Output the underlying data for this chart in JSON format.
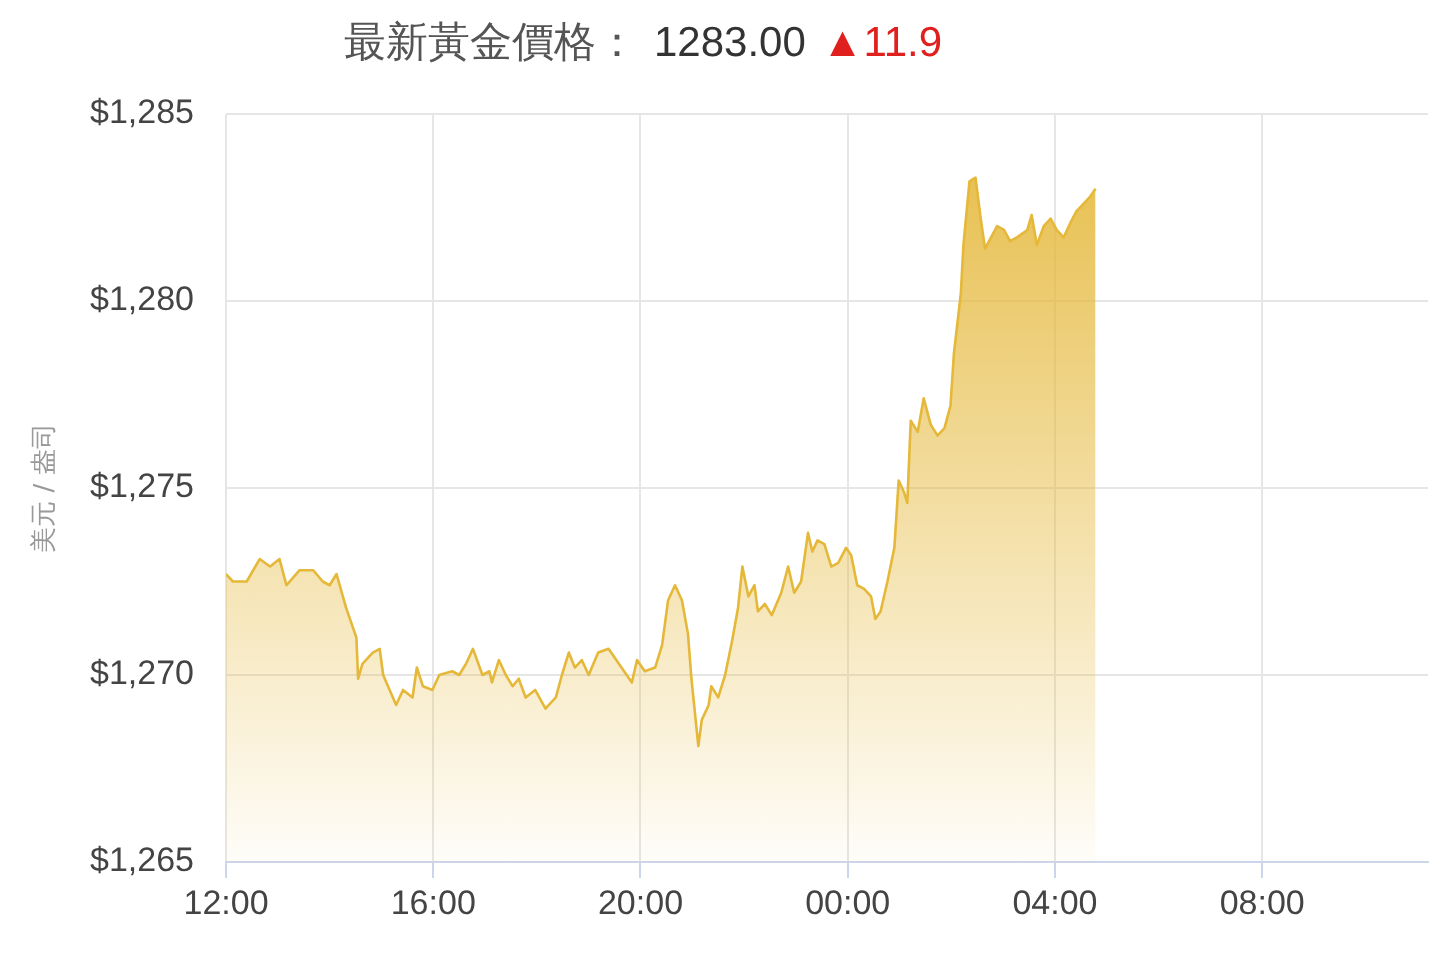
{
  "chart_data": {
    "type": "area",
    "title": "最新黃金價格：",
    "annotations": [
      "1283.00",
      "▲11.9"
    ],
    "ylabel": "美元 / 盎司",
    "color": "#e5b83a",
    "marker": "none",
    "grid": true,
    "xlim": [
      "2000-01-01T12:00",
      "2000-01-02T11:12"
    ],
    "xticks": [
      {
        "value": "2000-01-01T12:00",
        "label": "12:00"
      },
      {
        "value": "2000-01-01T16:00",
        "label": "16:00"
      },
      {
        "value": "2000-01-01T20:00",
        "label": "20:00"
      },
      {
        "value": "2000-01-02T00:00",
        "label": "00:00"
      },
      {
        "value": "2000-01-02T04:00",
        "label": "04:00"
      },
      {
        "value": "2000-01-02T08:00",
        "label": "08:00"
      }
    ],
    "ylim": [
      1265,
      1285
    ],
    "yticks": [
      {
        "value": 1265,
        "label": "$1,265"
      },
      {
        "value": 1270,
        "label": "$1,270"
      },
      {
        "value": 1275,
        "label": "$1,275"
      },
      {
        "value": 1280,
        "label": "$1,280"
      },
      {
        "value": 1285,
        "label": "$1,285"
      }
    ],
    "x": [
      "2000-01-01T12:00",
      "2000-01-01T12:08",
      "2000-01-01T12:24",
      "2000-01-01T12:39",
      "2000-01-01T12:51",
      "2000-01-01T13:02",
      "2000-01-01T13:10",
      "2000-01-01T13:25",
      "2000-01-01T13:41",
      "2000-01-01T13:52",
      "2000-01-01T14:00",
      "2000-01-01T14:08",
      "2000-01-01T14:19",
      "2000-01-01T14:31",
      "2000-01-01T14:33",
      "2000-01-01T14:38",
      "2000-01-01T14:50",
      "2000-01-01T14:58",
      "2000-01-01T15:02",
      "2000-01-01T15:17",
      "2000-01-01T15:25",
      "2000-01-01T15:36",
      "2000-01-01T15:41",
      "2000-01-01T15:48",
      "2000-01-01T15:59",
      "2000-01-01T16:07",
      "2000-01-01T16:22",
      "2000-01-01T16:30",
      "2000-01-01T16:38",
      "2000-01-01T16:46",
      "2000-01-01T16:57",
      "2000-01-01T17:05",
      "2000-01-01T17:08",
      "2000-01-01T17:16",
      "2000-01-01T17:24",
      "2000-01-01T17:32",
      "2000-01-01T17:39",
      "2000-01-01T17:47",
      "2000-01-01T17:58",
      "2000-01-01T18:10",
      "2000-01-01T18:22",
      "2000-01-01T18:29",
      "2000-01-01T18:37",
      "2000-01-01T18:44",
      "2000-01-01T18:52",
      "2000-01-01T19:00",
      "2000-01-01T19:11",
      "2000-01-01T19:23",
      "2000-01-01T19:35",
      "2000-01-01T19:44",
      "2000-01-01T19:50",
      "2000-01-01T19:56",
      "2000-01-01T20:05",
      "2000-01-01T20:17",
      "2000-01-01T20:25",
      "2000-01-01T20:32",
      "2000-01-01T20:40",
      "2000-01-01T20:48",
      "2000-01-01T20:55",
      "2000-01-01T20:59",
      "2000-01-01T21:07",
      "2000-01-01T21:11",
      "2000-01-01T21:19",
      "2000-01-01T21:22",
      "2000-01-01T21:30",
      "2000-01-01T21:38",
      "2000-01-01T21:46",
      "2000-01-01T21:53",
      "2000-01-01T21:58",
      "2000-01-01T22:05",
      "2000-01-01T22:12",
      "2000-01-01T22:16",
      "2000-01-01T22:24",
      "2000-01-01T22:32",
      "2000-01-01T22:43",
      "2000-01-01T22:51",
      "2000-01-01T22:58",
      "2000-01-01T23:06",
      "2000-01-01T23:14",
      "2000-01-01T23:19",
      "2000-01-01T23:25",
      "2000-01-01T23:33",
      "2000-01-01T23:41",
      "2000-01-01T23:49",
      "2000-01-01T23:58",
      "2000-01-02T00:04",
      "2000-01-02T00:11",
      "2000-01-02T00:19",
      "2000-01-02T00:27",
      "2000-01-02T00:32",
      "2000-01-02T00:38",
      "2000-01-02T00:46",
      "2000-01-02T00:54",
      "2000-01-02T00:59",
      "2000-01-02T01:05",
      "2000-01-02T01:09",
      "2000-01-02T01:13",
      "2000-01-02T01:21",
      "2000-01-02T01:28",
      "2000-01-02T01:36",
      "2000-01-02T01:44",
      "2000-01-02T01:52",
      "2000-01-02T01:59",
      "2000-01-02T02:03",
      "2000-01-02T02:11",
      "2000-01-02T02:14",
      "2000-01-02T02:21",
      "2000-01-02T02:28",
      "2000-01-02T02:34",
      "2000-01-02T02:39",
      "2000-01-02T02:46",
      "2000-01-02T02:53",
      "2000-01-02T03:01",
      "2000-01-02T03:08",
      "2000-01-02T03:16",
      "2000-01-02T03:28",
      "2000-01-02T03:33",
      "2000-01-02T03:39",
      "2000-01-02T03:47",
      "2000-01-02T03:55",
      "2000-01-02T04:02",
      "2000-01-02T04:10",
      "2000-01-02T04:18",
      "2000-01-02T04:25",
      "2000-01-02T04:33",
      "2000-01-02T04:41",
      "2000-01-02T04:47"
    ],
    "values": [
      1272.7,
      1272.5,
      1272.5,
      1273.1,
      1272.9,
      1273.1,
      1272.4,
      1272.8,
      1272.8,
      1272.5,
      1272.4,
      1272.7,
      1271.8,
      1271.0,
      1269.9,
      1270.3,
      1270.6,
      1270.7,
      1270.0,
      1269.2,
      1269.6,
      1269.4,
      1270.2,
      1269.7,
      1269.6,
      1270.0,
      1270.1,
      1270.0,
      1270.3,
      1270.7,
      1270.0,
      1270.1,
      1269.8,
      1270.4,
      1270.0,
      1269.7,
      1269.9,
      1269.4,
      1269.6,
      1269.1,
      1269.4,
      1270.0,
      1270.6,
      1270.2,
      1270.4,
      1270.0,
      1270.6,
      1270.7,
      1270.3,
      1270.0,
      1269.8,
      1270.4,
      1270.1,
      1270.2,
      1270.8,
      1272.0,
      1272.4,
      1272.0,
      1271.1,
      1269.9,
      1268.1,
      1268.8,
      1269.2,
      1269.7,
      1269.4,
      1270.0,
      1270.9,
      1271.8,
      1272.9,
      1272.1,
      1272.4,
      1271.7,
      1271.9,
      1271.6,
      1272.2,
      1272.9,
      1272.2,
      1272.5,
      1273.8,
      1273.3,
      1273.6,
      1273.5,
      1272.9,
      1273.0,
      1273.4,
      1273.2,
      1272.4,
      1272.3,
      1272.1,
      1271.5,
      1271.7,
      1272.5,
      1273.4,
      1275.2,
      1274.9,
      1274.6,
      1276.8,
      1276.5,
      1277.4,
      1276.7,
      1276.4,
      1276.6,
      1277.2,
      1278.6,
      1280.2,
      1281.5,
      1283.2,
      1283.3,
      1282.2,
      1281.4,
      1281.7,
      1282.0,
      1281.9,
      1281.6,
      1281.7,
      1281.9,
      1282.3,
      1281.5,
      1282.0,
      1282.2,
      1281.9,
      1281.7,
      1282.1,
      1282.4,
      1282.6,
      1282.8,
      1283.0
    ]
  }
}
